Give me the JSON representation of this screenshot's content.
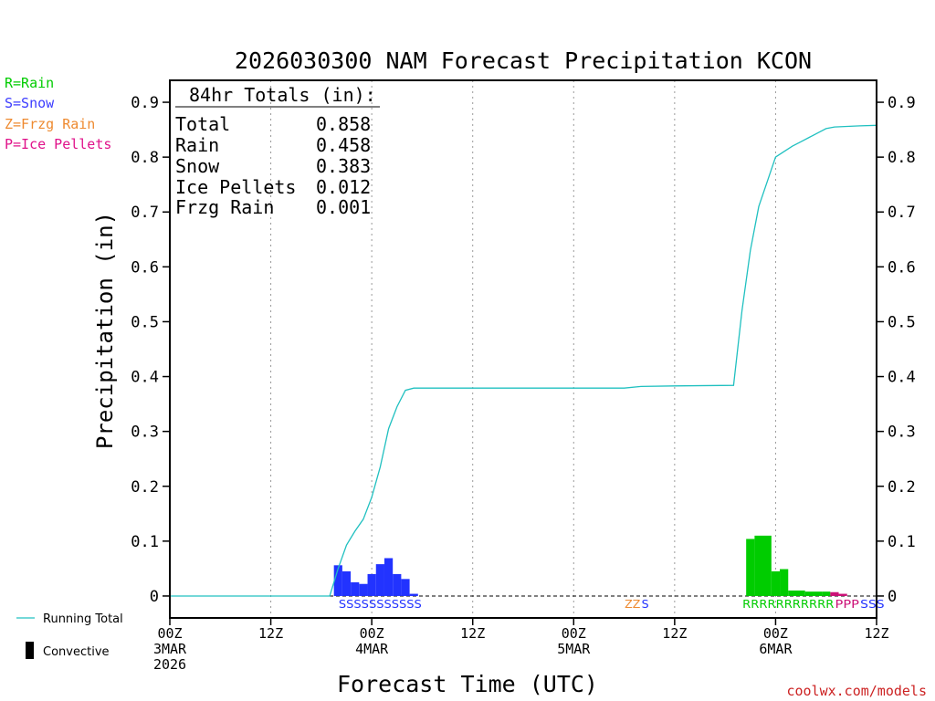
{
  "chart_data": {
    "type": "bar",
    "title": "2026030300 NAM Forecast Precipitation KCON",
    "xlabel": "Forecast Time (UTC)",
    "ylabel": "Precipitation (in)",
    "xlim_hours": [
      0,
      84
    ],
    "ylim": [
      -0.04,
      0.94
    ],
    "y_ticks": [
      0,
      0.1,
      0.2,
      0.3,
      0.4,
      0.5,
      0.6,
      0.7,
      0.8,
      0.9
    ],
    "y_tick_labels": [
      "0",
      "0.1",
      "0.2",
      "0.3",
      "0.4",
      "0.5",
      "0.6",
      "0.7",
      "0.8",
      "0.9"
    ],
    "x_ticks": [
      {
        "hour": 0,
        "lines": [
          "00Z",
          "3MAR",
          "2026"
        ]
      },
      {
        "hour": 12,
        "lines": [
          "12Z"
        ]
      },
      {
        "hour": 24,
        "lines": [
          "00Z",
          "4MAR"
        ]
      },
      {
        "hour": 36,
        "lines": [
          "12Z"
        ]
      },
      {
        "hour": 48,
        "lines": [
          "00Z",
          "5MAR"
        ]
      },
      {
        "hour": 60,
        "lines": [
          "12Z"
        ]
      },
      {
        "hour": 72,
        "lines": [
          "00Z",
          "6MAR"
        ]
      },
      {
        "hour": 84,
        "lines": [
          "12Z"
        ]
      }
    ],
    "type_legend": [
      {
        "label": "R=Rain",
        "color": "#00cc00"
      },
      {
        "label": "S=Snow",
        "color": "#3c3cff"
      },
      {
        "label": "Z=Frzg Rain",
        "color": "#ee8a30"
      },
      {
        "label": "P=Ice Pellets",
        "color": "#e0128a"
      }
    ],
    "series_legend": {
      "running_total": {
        "label": "Running Total",
        "color": "#20c0c0"
      },
      "convective": {
        "label": "Convective",
        "color": "#000000"
      }
    },
    "totals_box": {
      "header": "84hr Totals (in):",
      "rows": [
        {
          "label": "Total",
          "value": "0.858"
        },
        {
          "label": "Rain",
          "value": "0.458"
        },
        {
          "label": "Snow",
          "value": "0.383"
        },
        {
          "label": "Ice Pellets",
          "value": "0.012"
        },
        {
          "label": "Frzg Rain",
          "value": "0.001"
        }
      ]
    },
    "running_total": [
      {
        "h": 0,
        "v": 0
      },
      {
        "h": 19,
        "v": 0
      },
      {
        "h": 20,
        "v": 0.05
      },
      {
        "h": 21,
        "v": 0.093
      },
      {
        "h": 22,
        "v": 0.118
      },
      {
        "h": 23,
        "v": 0.14
      },
      {
        "h": 24,
        "v": 0.18
      },
      {
        "h": 25,
        "v": 0.235
      },
      {
        "h": 26,
        "v": 0.305
      },
      {
        "h": 27,
        "v": 0.345
      },
      {
        "h": 28,
        "v": 0.375
      },
      {
        "h": 29,
        "v": 0.379
      },
      {
        "h": 54,
        "v": 0.379
      },
      {
        "h": 56,
        "v": 0.382
      },
      {
        "h": 60,
        "v": 0.383
      },
      {
        "h": 67,
        "v": 0.384
      },
      {
        "h": 68,
        "v": 0.52
      },
      {
        "h": 69,
        "v": 0.63
      },
      {
        "h": 70,
        "v": 0.71
      },
      {
        "h": 71,
        "v": 0.755
      },
      {
        "h": 72,
        "v": 0.8
      },
      {
        "h": 73,
        "v": 0.81
      },
      {
        "h": 74,
        "v": 0.82
      },
      {
        "h": 75,
        "v": 0.828
      },
      {
        "h": 76,
        "v": 0.836
      },
      {
        "h": 77,
        "v": 0.844
      },
      {
        "h": 78,
        "v": 0.852
      },
      {
        "h": 79,
        "v": 0.855
      },
      {
        "h": 82,
        "v": 0.857
      },
      {
        "h": 84,
        "v": 0.858
      }
    ],
    "bars": [
      {
        "start": 19.5,
        "end": 20.5,
        "value": 0.056,
        "ptype": "S"
      },
      {
        "start": 20.5,
        "end": 21.5,
        "value": 0.045,
        "ptype": "S"
      },
      {
        "start": 21.5,
        "end": 22.5,
        "value": 0.025,
        "ptype": "S"
      },
      {
        "start": 22.5,
        "end": 23.5,
        "value": 0.022,
        "ptype": "S"
      },
      {
        "start": 23.5,
        "end": 24.5,
        "value": 0.04,
        "ptype": "S"
      },
      {
        "start": 24.5,
        "end": 25.5,
        "value": 0.058,
        "ptype": "S"
      },
      {
        "start": 25.5,
        "end": 26.5,
        "value": 0.069,
        "ptype": "S"
      },
      {
        "start": 26.5,
        "end": 27.5,
        "value": 0.04,
        "ptype": "S"
      },
      {
        "start": 27.5,
        "end": 28.5,
        "value": 0.031,
        "ptype": "S"
      },
      {
        "start": 28.5,
        "end": 29.5,
        "value": 0.004,
        "ptype": "S"
      },
      {
        "start": 68.5,
        "end": 69.5,
        "value": 0.104,
        "ptype": "R"
      },
      {
        "start": 69.5,
        "end": 71.5,
        "value": 0.11,
        "ptype": "R"
      },
      {
        "start": 71.5,
        "end": 72.5,
        "value": 0.045,
        "ptype": "R"
      },
      {
        "start": 72.5,
        "end": 73.5,
        "value": 0.049,
        "ptype": "R"
      },
      {
        "start": 73.5,
        "end": 75.5,
        "value": 0.01,
        "ptype": "R"
      },
      {
        "start": 75.5,
        "end": 77.5,
        "value": 0.008,
        "ptype": "R"
      },
      {
        "start": 77.5,
        "end": 78.5,
        "value": 0.008,
        "ptype": "R"
      },
      {
        "start": 78.5,
        "end": 79.5,
        "value": 0.007,
        "ptype": "P"
      },
      {
        "start": 79.5,
        "end": 80.5,
        "value": 0.004,
        "ptype": "P"
      }
    ],
    "type_markers": [
      {
        "text": "SSSSSSSSSSS",
        "start_hour": 20.5,
        "end_hour": 29.5,
        "ptype": "S"
      },
      {
        "text": "ZZ",
        "start_hour": 54.5,
        "end_hour": 55.5,
        "ptype": "Z"
      },
      {
        "text": "S",
        "start_hour": 56.5,
        "end_hour": 56.5,
        "ptype": "S"
      },
      {
        "text": "RRRRRRRRRRR",
        "start_hour": 68.5,
        "end_hour": 78.5,
        "ptype": "R"
      },
      {
        "text": "PPP",
        "start_hour": 79.5,
        "end_hour": 81.5,
        "ptype": "P"
      },
      {
        "text": "SSS",
        "start_hour": 82.5,
        "end_hour": 84.5,
        "ptype": "S"
      }
    ],
    "ptype_colors": {
      "R": "#00cc00",
      "S": "#2233ff",
      "Z": "#ee8a30",
      "P": "#cc1077"
    }
  },
  "footer": {
    "credit": "coolwx.com/models",
    "credit_color": "#cc2222"
  }
}
